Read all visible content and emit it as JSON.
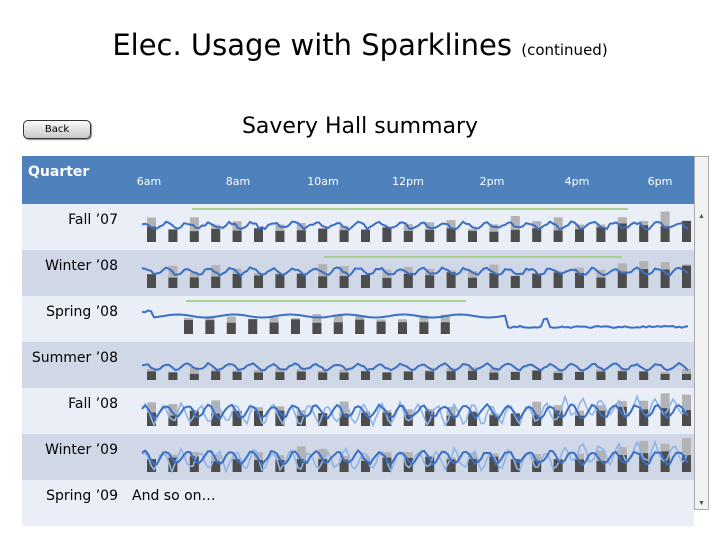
{
  "slide": {
    "title": "Elec. Usage with Sparklines",
    "subtitle": "(continued)"
  },
  "back_button": {
    "label": "Back"
  },
  "table": {
    "title": "Savery Hall summary",
    "header_label": "Quarter",
    "times": [
      "6am",
      "8am",
      "10am",
      "12pm",
      "2pm",
      "4pm",
      "6pm"
    ],
    "rows": [
      {
        "label": "Fall ’07",
        "bars": 26,
        "pattern": "regular"
      },
      {
        "label": "Winter ’08",
        "bars": 26,
        "pattern": "regular"
      },
      {
        "label": "Spring  ’08",
        "bars": 13,
        "pattern": "partial"
      },
      {
        "label": "Summer ’08",
        "bars": 26,
        "pattern": "low"
      },
      {
        "label": "Fall ’08",
        "bars": 26,
        "pattern": "spiky"
      },
      {
        "label": "Winter ’09",
        "bars": 26,
        "pattern": "spiky"
      },
      {
        "label": "Spring  ’09",
        "text": "And so on…"
      }
    ]
  },
  "colors": {
    "header": "#4f81bd",
    "line": "#3b6fc4",
    "line_light": "#8fb4e8",
    "bar_dark": "#4d4d4d",
    "bar_light": "#b3b3b3",
    "reference": "#a9d18e"
  }
}
